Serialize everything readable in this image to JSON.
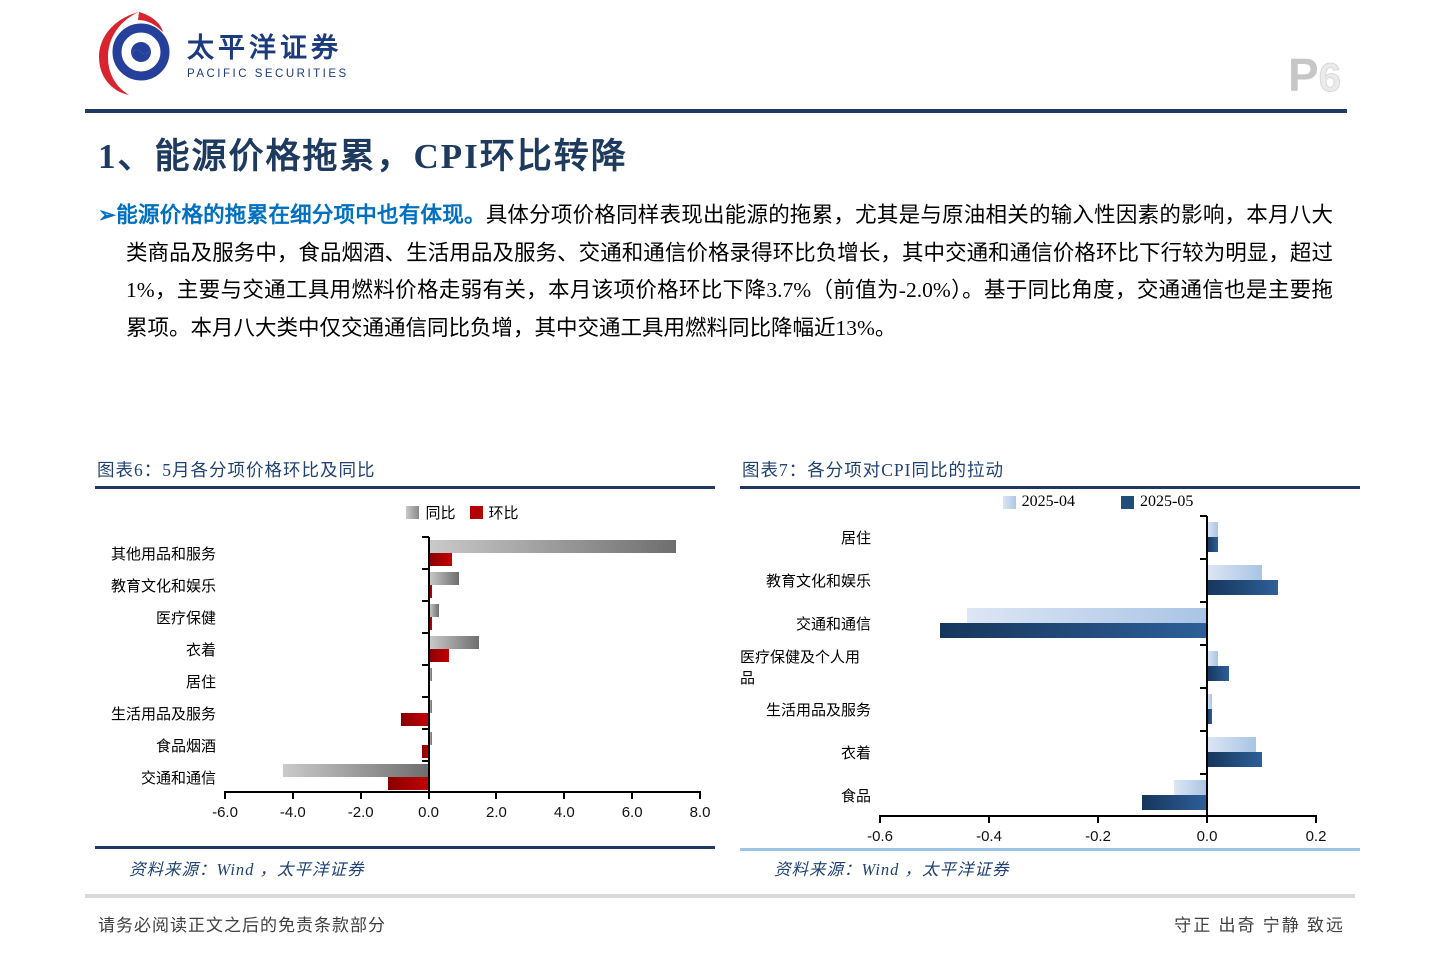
{
  "header": {
    "logo_cn": "太平洋证券",
    "logo_en": "PACIFIC SECURITIES",
    "page_letter": "P",
    "page_number": "6"
  },
  "title": "1、能源价格拖累，CPI环比转降",
  "paragraph": {
    "bullet": "➢",
    "lead": "能源价格的拖累在细分项中也有体现。",
    "body": "具体分项价格同样表现出能源的拖累，尤其是与原油相关的输入性因素的影响，本月八大类商品及服务中，食品烟酒、生活用品及服务、交通和通信价格录得环比负增长，其中交通和通信价格环比下行较为明显，超过1%，主要与交通工具用燃料价格走弱有关，本月该项价格环比下降3.7%（前值为-2.0%）。基于同比角度，交通通信也是主要拖累项。本月八大类中仅交通通信同比负增，其中交通工具用燃料同比降幅近13%。"
  },
  "colors": {
    "accent_navy": "#1f3864",
    "lead_blue": "#0070c0",
    "gray_bar": "#8a8a8a",
    "red_bar": "#b30000",
    "light_blue_bar": "#bdd2ea",
    "dark_blue_bar": "#1f4e79"
  },
  "chart_data": [
    {
      "id": "fig6",
      "type": "bar",
      "orientation": "horizontal",
      "title": "图表6：5月各分项价格环比及同比",
      "categories": [
        "其他用品和服务",
        "教育文化和娱乐",
        "医疗保健",
        "衣着",
        "居住",
        "生活用品及服务",
        "食品烟酒",
        "交通和通信"
      ],
      "series": [
        {
          "name": "同比",
          "values": [
            7.3,
            0.9,
            0.3,
            1.5,
            0.1,
            0.1,
            0.1,
            -4.3
          ]
        },
        {
          "name": "环比",
          "values": [
            0.7,
            0.1,
            0.1,
            0.6,
            0.0,
            -0.8,
            -0.2,
            -1.2
          ]
        }
      ],
      "xlim": [
        -6,
        8
      ],
      "xticks": [
        "-6.0",
        "-4.0",
        "-2.0",
        "0.0",
        "2.0",
        "4.0",
        "6.0",
        "8.0"
      ],
      "legend_position": "top-center",
      "grid": false,
      "source": "资料来源：Wind ，太平洋证券"
    },
    {
      "id": "fig7",
      "type": "bar",
      "orientation": "horizontal",
      "title": "图表7：各分项对CPI同比的拉动",
      "categories": [
        "居住",
        "教育文化和娱乐",
        "交通和通信",
        "医疗保健及个人用品",
        "生活用品及服务",
        "衣着",
        "食品"
      ],
      "series": [
        {
          "name": "2025-04",
          "values": [
            0.02,
            0.1,
            -0.44,
            0.02,
            0.01,
            0.09,
            -0.06
          ]
        },
        {
          "name": "2025-05",
          "values": [
            0.02,
            0.13,
            -0.49,
            0.04,
            0.01,
            0.1,
            -0.12
          ]
        }
      ],
      "xlim": [
        -0.6,
        0.2
      ],
      "xticks": [
        "-0.6",
        "-0.4",
        "-0.2",
        "0.0",
        "0.2"
      ],
      "legend_position": "top-center",
      "grid": false,
      "source": "资料来源：Wind ，太平洋证券"
    }
  ],
  "footer": {
    "left": "请务必阅读正文之后的免责条款部分",
    "right": "守正 出奇 宁静 致远"
  }
}
